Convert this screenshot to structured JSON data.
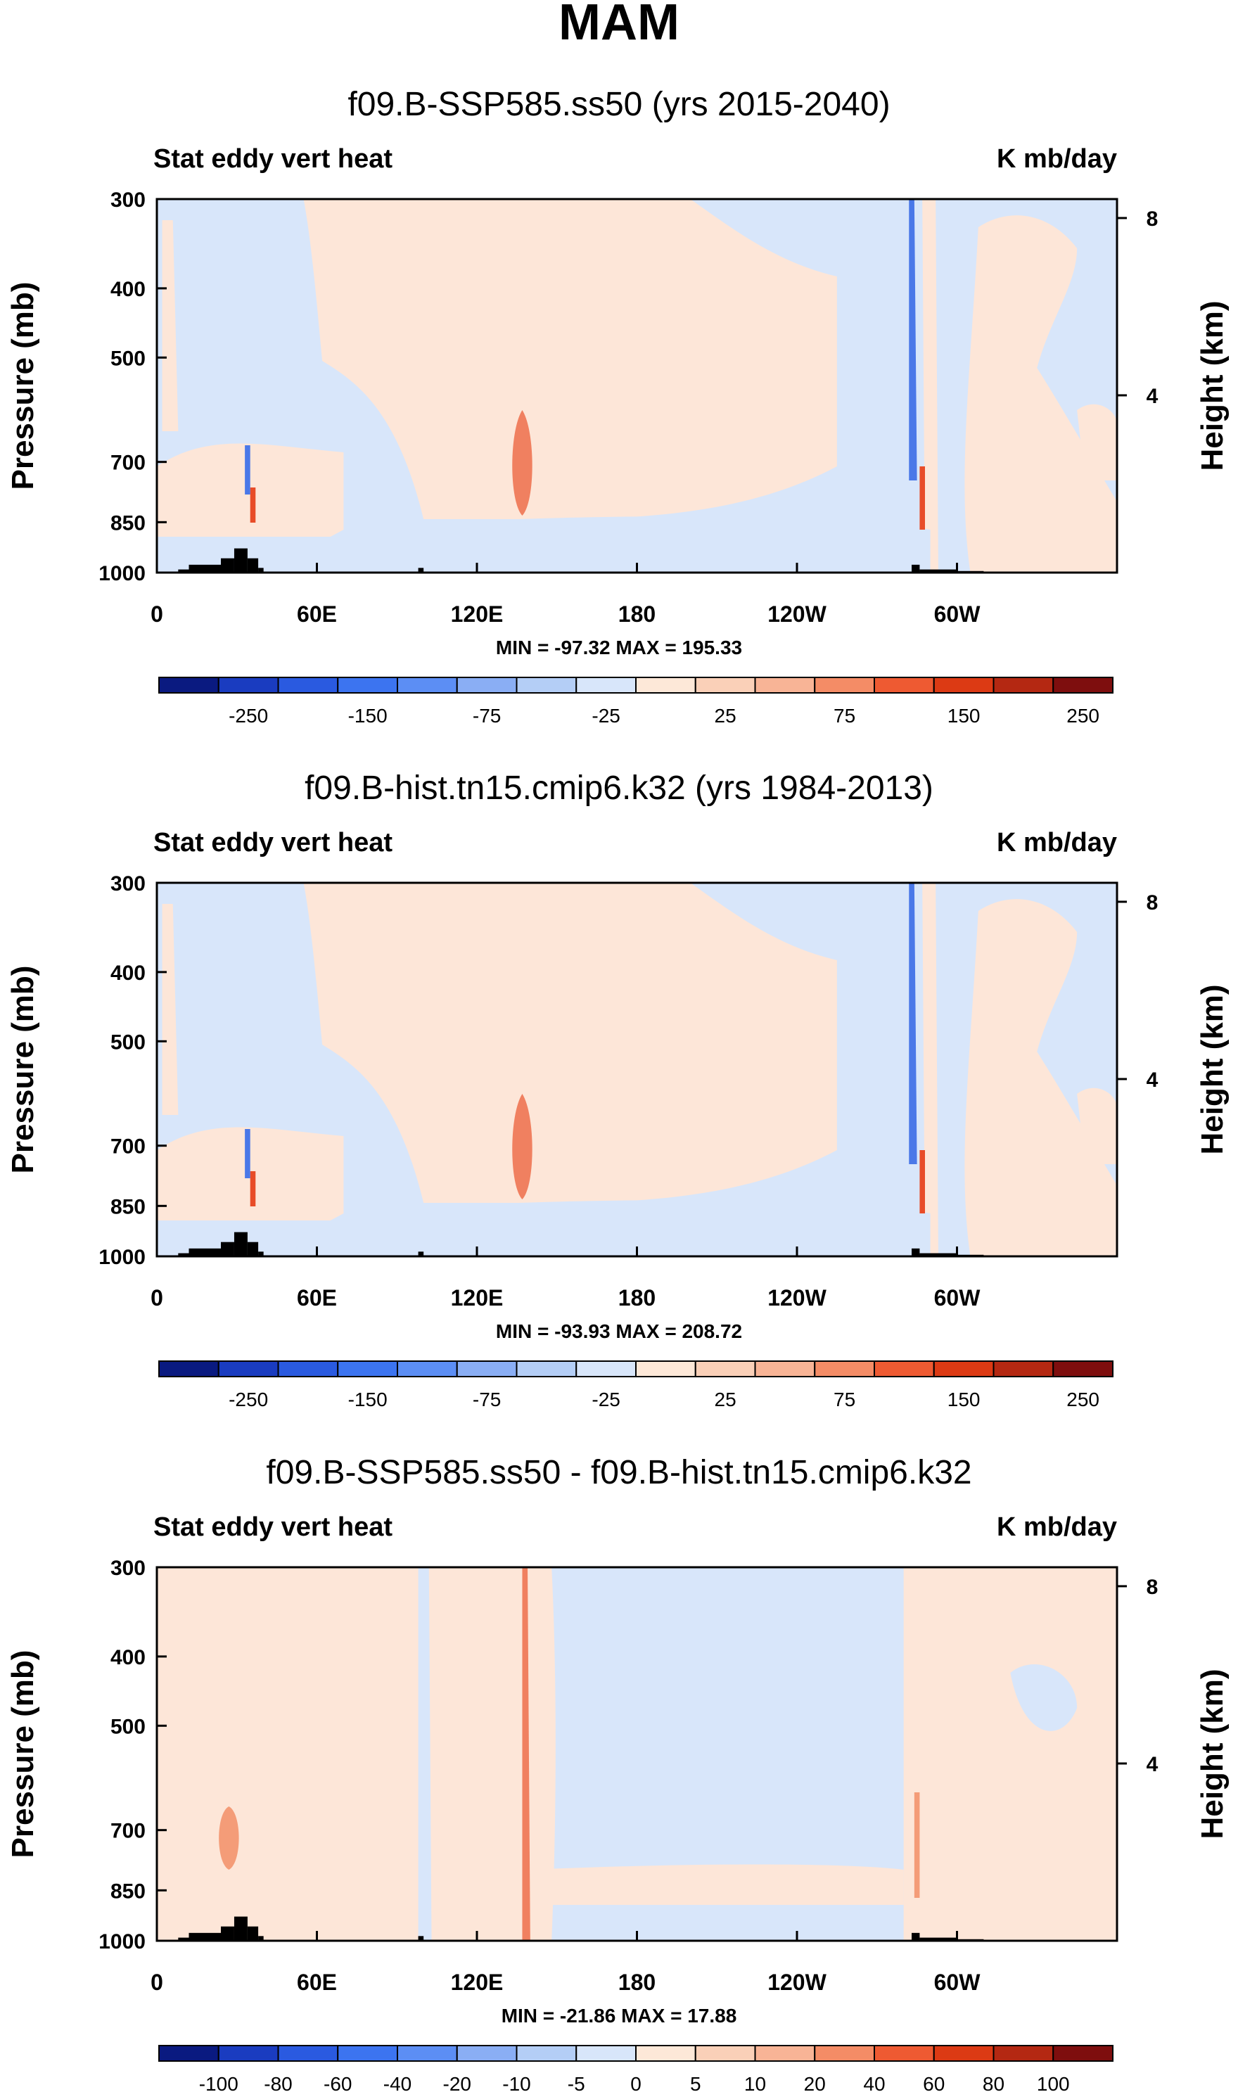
{
  "figure_title": "MAM",
  "chart_data": [
    {
      "type": "contour",
      "title": "f09.B-SSP585.ss50 (yrs 2015-2040)",
      "left_label": "Stat eddy vert heat",
      "right_label": "K mb/day",
      "xlabel": "",
      "ylabel": "Pressure (mb)",
      "y2label": "Height (km)",
      "xticks": [
        {
          "lon": 0,
          "label": "0"
        },
        {
          "lon": 60,
          "label": "60E"
        },
        {
          "lon": 120,
          "label": "120E"
        },
        {
          "lon": 180,
          "label": "180"
        },
        {
          "lon": 240,
          "label": "120W"
        },
        {
          "lon": 300,
          "label": "60W"
        }
      ],
      "xlim": [
        0,
        360
      ],
      "yticks": [
        {
          "p": 300,
          "label": "300"
        },
        {
          "p": 400,
          "label": "400"
        },
        {
          "p": 500,
          "label": "500"
        },
        {
          "p": 700,
          "label": "700"
        },
        {
          "p": 850,
          "label": "850"
        },
        {
          "p": 1000,
          "label": "1000"
        }
      ],
      "ylim": [
        1000,
        300
      ],
      "y2ticks": [
        {
          "km": 4,
          "label": "4"
        },
        {
          "km": 8,
          "label": "8"
        }
      ],
      "stats": "MIN = -97.32  MAX = 195.33",
      "min": -97.32,
      "max": 195.33,
      "colorbar_labels": [
        "-250",
        "-150",
        "-75",
        "-25",
        "25",
        "75",
        "150",
        "250"
      ]
    },
    {
      "type": "contour",
      "title": "f09.B-hist.tn15.cmip6.k32 (yrs 1984-2013)",
      "left_label": "Stat eddy vert heat",
      "right_label": "K mb/day",
      "xlabel": "",
      "ylabel": "Pressure (mb)",
      "y2label": "Height (km)",
      "xticks": [
        {
          "lon": 0,
          "label": "0"
        },
        {
          "lon": 60,
          "label": "60E"
        },
        {
          "lon": 120,
          "label": "120E"
        },
        {
          "lon": 180,
          "label": "180"
        },
        {
          "lon": 240,
          "label": "120W"
        },
        {
          "lon": 300,
          "label": "60W"
        }
      ],
      "xlim": [
        0,
        360
      ],
      "yticks": [
        {
          "p": 300,
          "label": "300"
        },
        {
          "p": 400,
          "label": "400"
        },
        {
          "p": 500,
          "label": "500"
        },
        {
          "p": 700,
          "label": "700"
        },
        {
          "p": 850,
          "label": "850"
        },
        {
          "p": 1000,
          "label": "1000"
        }
      ],
      "ylim": [
        1000,
        300
      ],
      "y2ticks": [
        {
          "km": 4,
          "label": "4"
        },
        {
          "km": 8,
          "label": "8"
        }
      ],
      "stats": "MIN = -93.93  MAX = 208.72",
      "min": -93.93,
      "max": 208.72,
      "colorbar_labels": [
        "-250",
        "-150",
        "-75",
        "-25",
        "25",
        "75",
        "150",
        "250"
      ]
    },
    {
      "type": "contour",
      "title": "f09.B-SSP585.ss50 - f09.B-hist.tn15.cmip6.k32",
      "left_label": "Stat eddy vert heat",
      "right_label": "K mb/day",
      "xlabel": "",
      "ylabel": "Pressure (mb)",
      "y2label": "Height (km)",
      "xticks": [
        {
          "lon": 0,
          "label": "0"
        },
        {
          "lon": 60,
          "label": "60E"
        },
        {
          "lon": 120,
          "label": "120E"
        },
        {
          "lon": 180,
          "label": "180"
        },
        {
          "lon": 240,
          "label": "120W"
        },
        {
          "lon": 300,
          "label": "60W"
        }
      ],
      "xlim": [
        0,
        360
      ],
      "yticks": [
        {
          "p": 300,
          "label": "300"
        },
        {
          "p": 400,
          "label": "400"
        },
        {
          "p": 500,
          "label": "500"
        },
        {
          "p": 700,
          "label": "700"
        },
        {
          "p": 850,
          "label": "850"
        },
        {
          "p": 1000,
          "label": "1000"
        }
      ],
      "ylim": [
        1000,
        300
      ],
      "y2ticks": [
        {
          "km": 4,
          "label": "4"
        },
        {
          "km": 8,
          "label": "8"
        }
      ],
      "stats": "MIN = -21.86  MAX = 17.88",
      "min": -21.86,
      "max": 17.88,
      "colorbar_labels": [
        "-100",
        "-80",
        "-60",
        "-40",
        "-20",
        "-10",
        "-5",
        "0",
        "5",
        "10",
        "20",
        "40",
        "60",
        "80",
        "100"
      ]
    }
  ],
  "colors": {
    "colorbar": [
      "#0a1a80",
      "#1a3cc0",
      "#2a5ae0",
      "#3c74f0",
      "#5c8ef4",
      "#8aaef4",
      "#b4cef6",
      "#d8e6fa",
      "#fde8d8",
      "#fad0b8",
      "#f8b496",
      "#f48c66",
      "#ee5a32",
      "#dc3a14",
      "#b42812",
      "#7e0e0e"
    ],
    "positive": "#fde6d8",
    "negative": "#d8e6fa",
    "terrain": "#000000"
  }
}
